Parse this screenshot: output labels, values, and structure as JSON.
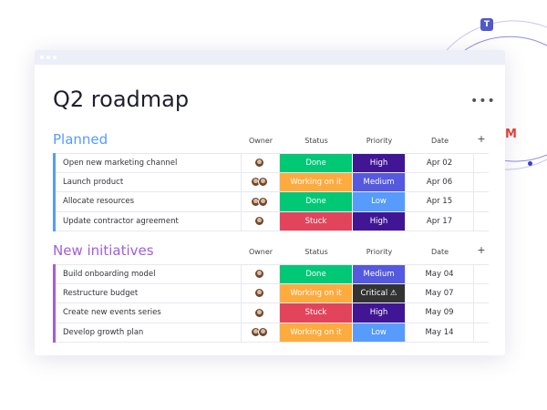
{
  "title": "Q2 roadmap",
  "columns": {
    "owner": "Owner",
    "status": "Status",
    "priority": "Priority",
    "date": "Date",
    "add": "+"
  },
  "colors": {
    "Done": "#00c875",
    "Working on it": "#fdab3d",
    "Stuck": "#e2445c",
    "High": "#401694",
    "Medium": "#5559df",
    "Low": "#579bfc",
    "Critical": "#333333"
  },
  "groups": [
    {
      "title": "Planned",
      "color": "#579bfc",
      "rows": [
        {
          "name": "Open new marketing channel",
          "owners": 1,
          "status": "Done",
          "priority": "High",
          "date": "Apr 02"
        },
        {
          "name": "Launch product",
          "owners": 2,
          "status": "Working on it",
          "priority": "Medium",
          "date": "Apr 06"
        },
        {
          "name": "Allocate resources",
          "owners": 2,
          "status": "Done",
          "priority": "Low",
          "date": "Apr 15"
        },
        {
          "name": "Update contractor agreement",
          "owners": 1,
          "status": "Stuck",
          "priority": "High",
          "date": "Apr 17"
        }
      ]
    },
    {
      "title": "New initiatives",
      "color": "#a25ddc",
      "rows": [
        {
          "name": "Build onboarding model",
          "owners": 1,
          "status": "Done",
          "priority": "Medium",
          "date": "May 04"
        },
        {
          "name": "Restructure budget",
          "owners": 1,
          "status": "Working on it",
          "priority": "Critical ⚠",
          "date": "May 07"
        },
        {
          "name": "Create new events series",
          "owners": 1,
          "status": "Stuck",
          "priority": "High",
          "date": "May 09"
        },
        {
          "name": "Develop growth plan",
          "owners": 2,
          "status": "Working on it",
          "priority": "Low",
          "date": "May 14"
        }
      ]
    }
  ],
  "integrations": [
    "teams-icon",
    "gmail-icon"
  ]
}
